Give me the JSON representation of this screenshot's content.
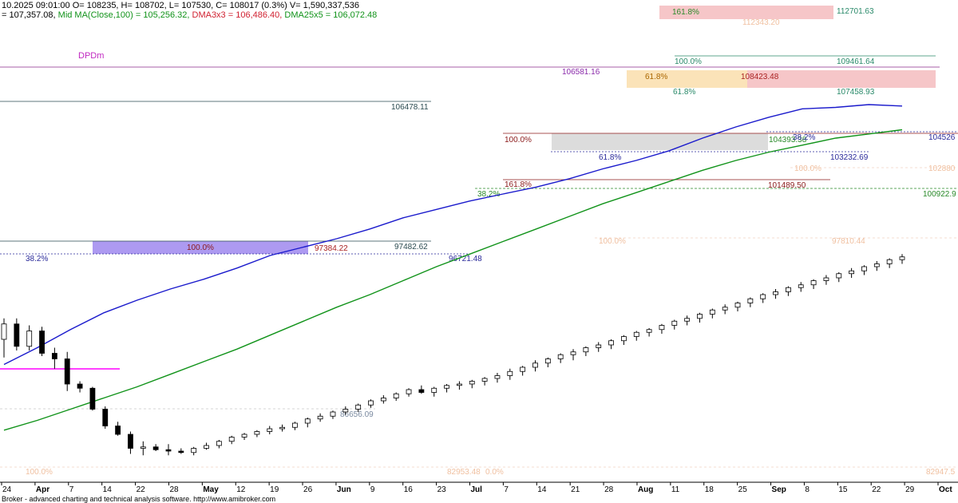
{
  "header": {
    "line1": "10.2025 09:01:00 O= 108235, H= 108702, L= 107530, C= 108017 (0.3%) V= 1,590,337,536",
    "line2_prefix": "= 107,357.08, ",
    "ma100_label": "Mid MA(Close,100) = 105,256.32, ",
    "dma3_label": "DMA3x3 = 106,486.40, ",
    "dma25_label": "DMA25x5 = 106,072.48"
  },
  "footer": "Broker - advanced charting and technical analysis software. http://www.amibroker.com",
  "colors": {
    "up_candle": "#ffffff",
    "down_candle": "#000000",
    "ma100": "#1a1acc",
    "dma25": "#11931a",
    "dma3": "#d02030",
    "magenta": "#ff00ff",
    "purple_zone": "#9f88ee",
    "pink_zone": "#f6c6c8",
    "orange_zone": "#fbe3b8",
    "gray_zone": "#dcdcdc"
  },
  "chart_data": {
    "type": "candlestick",
    "title": "",
    "y_range": [
      80800,
      114800
    ],
    "x_tick_labels": [
      "24",
      "Apr",
      "7",
      "14",
      "22",
      "28",
      "May",
      "12",
      "19",
      "26",
      "Jun",
      "9",
      "16",
      "23",
      "Jul",
      "7",
      "14",
      "21",
      "28",
      "Aug",
      "11",
      "18",
      "25",
      "Sep",
      "8",
      "15",
      "22",
      "29",
      "Oct"
    ],
    "candles": [
      {
        "o": 90800,
        "h": 92300,
        "l": 89500,
        "c": 91900
      },
      {
        "o": 91900,
        "h": 92300,
        "l": 90000,
        "c": 90300
      },
      {
        "o": 90300,
        "h": 91800,
        "l": 90000,
        "c": 91400
      },
      {
        "o": 91400,
        "h": 91700,
        "l": 89600,
        "c": 89800
      },
      {
        "o": 89800,
        "h": 90200,
        "l": 88700,
        "c": 89400
      },
      {
        "o": 89400,
        "h": 89900,
        "l": 87100,
        "c": 87600
      },
      {
        "o": 87600,
        "h": 87800,
        "l": 87000,
        "c": 87300
      },
      {
        "o": 87300,
        "h": 87400,
        "l": 85700,
        "c": 85800
      },
      {
        "o": 85800,
        "h": 86000,
        "l": 84400,
        "c": 84600
      },
      {
        "o": 84600,
        "h": 84900,
        "l": 83900,
        "c": 84000
      },
      {
        "o": 84000,
        "h": 84200,
        "l": 82600,
        "c": 83000
      },
      {
        "o": 83000,
        "h": 83500,
        "l": 82500,
        "c": 83100
      },
      {
        "o": 83100,
        "h": 83300,
        "l": 82800,
        "c": 82900
      },
      {
        "o": 82900,
        "h": 83300,
        "l": 82500,
        "c": 82800
      },
      {
        "o": 82800,
        "h": 83000,
        "l": 82600,
        "c": 82700
      },
      {
        "o": 82700,
        "h": 83100,
        "l": 82500,
        "c": 83000
      },
      {
        "o": 83000,
        "h": 83400,
        "l": 82900,
        "c": 83200
      },
      {
        "o": 83200,
        "h": 83600,
        "l": 83000,
        "c": 83500
      },
      {
        "o": 83500,
        "h": 83900,
        "l": 83300,
        "c": 83800
      },
      {
        "o": 83800,
        "h": 84100,
        "l": 83600,
        "c": 84000
      },
      {
        "o": 84000,
        "h": 84300,
        "l": 83800,
        "c": 84200
      },
      {
        "o": 84200,
        "h": 84600,
        "l": 84000,
        "c": 84400
      },
      {
        "o": 84400,
        "h": 84700,
        "l": 84200,
        "c": 84500
      },
      {
        "o": 84500,
        "h": 84900,
        "l": 84300,
        "c": 84800
      },
      {
        "o": 84800,
        "h": 85200,
        "l": 84500,
        "c": 85100
      },
      {
        "o": 85100,
        "h": 85500,
        "l": 84900,
        "c": 85300
      },
      {
        "o": 85300,
        "h": 85700,
        "l": 85100,
        "c": 85600
      },
      {
        "o": 85600,
        "h": 86000,
        "l": 85400,
        "c": 85800
      },
      {
        "o": 85800,
        "h": 86200,
        "l": 85600,
        "c": 86100
      },
      {
        "o": 86100,
        "h": 86500,
        "l": 85900,
        "c": 86400
      },
      {
        "o": 86400,
        "h": 86800,
        "l": 86200,
        "c": 86600
      },
      {
        "o": 86600,
        "h": 87000,
        "l": 86400,
        "c": 86900
      },
      {
        "o": 86900,
        "h": 87300,
        "l": 86700,
        "c": 87200
      },
      {
        "o": 87200,
        "h": 87500,
        "l": 86900,
        "c": 87000
      },
      {
        "o": 87000,
        "h": 87400,
        "l": 86700,
        "c": 87300
      },
      {
        "o": 87300,
        "h": 87600,
        "l": 87000,
        "c": 87500
      },
      {
        "o": 87500,
        "h": 87800,
        "l": 87200,
        "c": 87600
      },
      {
        "o": 87600,
        "h": 87900,
        "l": 87300,
        "c": 87800
      },
      {
        "o": 87800,
        "h": 88100,
        "l": 87500,
        "c": 88000
      },
      {
        "o": 88000,
        "h": 88400,
        "l": 87700,
        "c": 88200
      },
      {
        "o": 88200,
        "h": 88700,
        "l": 87900,
        "c": 88500
      },
      {
        "o": 88500,
        "h": 88900,
        "l": 88200,
        "c": 88800
      },
      {
        "o": 88800,
        "h": 89300,
        "l": 88500,
        "c": 89100
      },
      {
        "o": 89100,
        "h": 89500,
        "l": 88800,
        "c": 89400
      },
      {
        "o": 89400,
        "h": 89800,
        "l": 89100,
        "c": 89700
      },
      {
        "o": 89700,
        "h": 90100,
        "l": 89300,
        "c": 89900
      },
      {
        "o": 89900,
        "h": 90300,
        "l": 89600,
        "c": 90200
      },
      {
        "o": 90200,
        "h": 90600,
        "l": 89900,
        "c": 90400
      },
      {
        "o": 90400,
        "h": 90800,
        "l": 90100,
        "c": 90700
      },
      {
        "o": 90700,
        "h": 91100,
        "l": 90400,
        "c": 91000
      },
      {
        "o": 91000,
        "h": 91400,
        "l": 90700,
        "c": 91300
      },
      {
        "o": 91300,
        "h": 91600,
        "l": 91000,
        "c": 91500
      },
      {
        "o": 91500,
        "h": 91900,
        "l": 91200,
        "c": 91800
      },
      {
        "o": 91800,
        "h": 92200,
        "l": 91500,
        "c": 92100
      },
      {
        "o": 92100,
        "h": 92500,
        "l": 91800,
        "c": 92300
      },
      {
        "o": 92300,
        "h": 92700,
        "l": 92000,
        "c": 92600
      },
      {
        "o": 92600,
        "h": 93000,
        "l": 92300,
        "c": 92900
      },
      {
        "o": 92900,
        "h": 93300,
        "l": 92600,
        "c": 93100
      },
      {
        "o": 93100,
        "h": 93500,
        "l": 92800,
        "c": 93400
      },
      {
        "o": 93400,
        "h": 93800,
        "l": 93100,
        "c": 93700
      },
      {
        "o": 93700,
        "h": 94100,
        "l": 93400,
        "c": 94000
      },
      {
        "o": 94000,
        "h": 94400,
        "l": 93700,
        "c": 94200
      },
      {
        "o": 94200,
        "h": 94600,
        "l": 93900,
        "c": 94500
      },
      {
        "o": 94500,
        "h": 94900,
        "l": 94200,
        "c": 94700
      },
      {
        "o": 94700,
        "h": 95100,
        "l": 94400,
        "c": 95000
      },
      {
        "o": 95000,
        "h": 95400,
        "l": 94700,
        "c": 95200
      },
      {
        "o": 95200,
        "h": 95600,
        "l": 94900,
        "c": 95500
      },
      {
        "o": 95500,
        "h": 95900,
        "l": 95200,
        "c": 95700
      },
      {
        "o": 95700,
        "h": 96100,
        "l": 95400,
        "c": 96000
      },
      {
        "o": 96000,
        "h": 96400,
        "l": 95700,
        "c": 96200
      },
      {
        "o": 96200,
        "h": 96600,
        "l": 95900,
        "c": 96500
      },
      {
        "o": 96500,
        "h": 96900,
        "l": 96200,
        "c": 96700
      }
    ],
    "ma100_values": [
      89000,
      90200,
      91500,
      92700,
      93600,
      94400,
      95100,
      95900,
      96800,
      97400,
      98000,
      98700,
      99500,
      100100,
      100700,
      101200,
      101700,
      102300,
      103000,
      103600,
      104300,
      105200,
      106000,
      106700,
      107300,
      107400,
      107600,
      107500
    ],
    "dma25_values": [
      84300,
      85000,
      85800,
      86600,
      87400,
      88300,
      89200,
      90100,
      91100,
      92100,
      93100,
      94000,
      95000,
      96000,
      96900,
      97800,
      98700,
      99600,
      100500,
      101300,
      102100,
      102900,
      103600,
      104200,
      104700,
      105200,
      105500,
      105800
    ],
    "labels": [
      {
        "text": "DPDm",
        "color": "#c028c0"
      },
      {
        "text": "106478.11",
        "color": "#2a4a50"
      },
      {
        "text": "100.0%",
        "color": "#8b1a1a"
      },
      {
        "text": "61.8%",
        "color": "#2a2a9a"
      },
      {
        "text": "161.8%",
        "color": "#8b1a1a"
      },
      {
        "text": "38.2%",
        "color": "#2a8a2a"
      },
      {
        "text": "97384.22",
        "color": "#aa2222"
      },
      {
        "text": "97482.62",
        "color": "#2a4a50"
      },
      {
        "text": "96721.48",
        "color": "#2a2a9a"
      },
      {
        "text": "100.0%",
        "color": "#8b1a1a"
      },
      {
        "text": "38.2%",
        "color": "#2a2a9a"
      },
      {
        "text": "86656.09",
        "color": "#7a8aa0"
      },
      {
        "text": "161.8%",
        "color": "#2a8a2a"
      },
      {
        "text": "112701.63",
        "color": "#2a8a6a"
      },
      {
        "text": "100.0%",
        "color": "#2a8a6a"
      },
      {
        "text": "109461.64",
        "color": "#2a8a6a"
      },
      {
        "text": "61.8%",
        "color": "#aa6600"
      },
      {
        "text": "108423.48",
        "color": "#aa2222"
      },
      {
        "text": "61.8%",
        "color": "#2a8a6a"
      },
      {
        "text": "107458.93",
        "color": "#2a8a6a"
      },
      {
        "text": "104393.38",
        "color": "#2a8a2a"
      },
      {
        "text": "38.2%",
        "color": "#2a2a9a"
      },
      {
        "text": "103232.69",
        "color": "#2a2a9a"
      },
      {
        "text": "101489.50",
        "color": "#8b1a1a"
      },
      {
        "text": "104526",
        "color": "#2a2a9a"
      },
      {
        "text": "100922.9",
        "color": "#2a8a2a"
      },
      {
        "text": "106581.16",
        "color": "#8a2aaa"
      },
      {
        "text": "112343.20",
        "color": "#f0c0a0"
      },
      {
        "text": "102880",
        "color": "#f0c0a0"
      },
      {
        "text": "100.0%",
        "color": "#f0c0a0"
      },
      {
        "text": "100.0%",
        "color": "#f0c0a0"
      },
      {
        "text": "97810.44",
        "color": "#f0c0a0"
      },
      {
        "text": "100.0%",
        "color": "#f0c0a0"
      },
      {
        "text": "82953.48",
        "color": "#f0c0a0"
      },
      {
        "text": "0.0%",
        "color": "#f0c0a0"
      },
      {
        "text": "82947.5",
        "color": "#f0c0a0"
      }
    ]
  }
}
